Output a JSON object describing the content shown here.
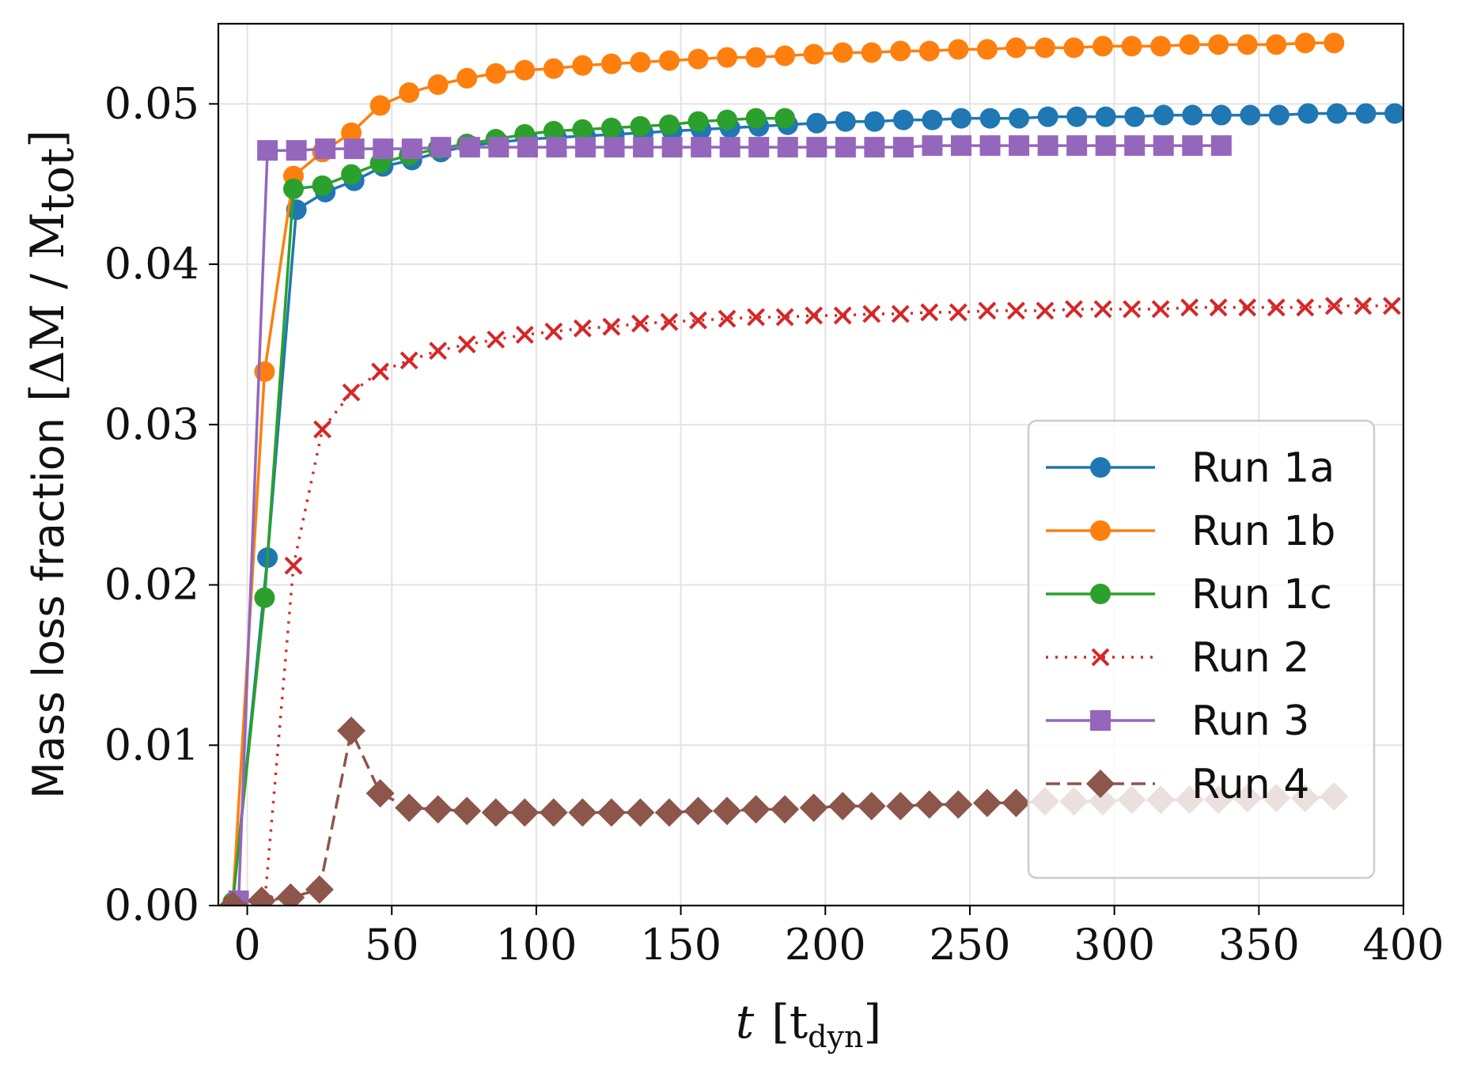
{
  "chart_data": {
    "type": "line",
    "title": "",
    "xlabel": {
      "var": "t",
      "unit_prefix": "[t",
      "unit_sub": "dyn",
      "unit_suffix": "]"
    },
    "ylabel": {
      "text": "Mass loss fraction",
      "math_prefix": "[ΔM / M",
      "math_sub": "tot",
      "math_suffix": "]"
    },
    "xlim": [
      -10,
      400
    ],
    "ylim": [
      0,
      0.055
    ],
    "xticks": [
      0,
      50,
      100,
      150,
      200,
      250,
      300,
      350,
      400
    ],
    "xtick_labels": [
      "0",
      "50",
      "100",
      "150",
      "200",
      "250",
      "300",
      "350",
      "400"
    ],
    "yticks": [
      0,
      0.01,
      0.02,
      0.03,
      0.04,
      0.05
    ],
    "ytick_labels": [
      "0.00",
      "0.01",
      "0.02",
      "0.03",
      "0.04",
      "0.05"
    ],
    "grid": true,
    "legend_position": "lower-right",
    "series": [
      {
        "name": "Run 1a",
        "color": "#1f77b4",
        "marker": "circle",
        "linestyle": "solid",
        "x": [
          -5,
          7,
          17,
          27,
          37,
          47,
          57,
          67,
          77,
          87,
          97,
          107,
          117,
          127,
          137,
          147,
          157,
          167,
          177,
          187,
          197,
          207,
          217,
          227,
          237,
          247,
          257,
          267,
          277,
          287,
          297,
          307,
          317,
          327,
          337,
          347,
          357,
          367,
          377,
          387,
          397
        ],
        "y": [
          0.0002,
          0.0217,
          0.0434,
          0.0445,
          0.0452,
          0.0461,
          0.0465,
          0.047,
          0.0474,
          0.0476,
          0.0478,
          0.0479,
          0.048,
          0.0481,
          0.0482,
          0.0483,
          0.0484,
          0.0485,
          0.0486,
          0.0487,
          0.0488,
          0.0489,
          0.0489,
          0.049,
          0.049,
          0.0491,
          0.0491,
          0.0491,
          0.0492,
          0.0492,
          0.0492,
          0.0492,
          0.0493,
          0.0493,
          0.0493,
          0.0493,
          0.0493,
          0.0494,
          0.0494,
          0.0494,
          0.0494
        ]
      },
      {
        "name": "Run 1b",
        "color": "#ff7f0e",
        "marker": "circle",
        "linestyle": "solid",
        "x": [
          -5,
          6,
          16,
          26,
          36,
          46,
          56,
          66,
          76,
          86,
          96,
          106,
          116,
          126,
          136,
          146,
          156,
          166,
          176,
          186,
          196,
          206,
          216,
          226,
          236,
          246,
          256,
          266,
          276,
          286,
          296,
          306,
          316,
          326,
          336,
          346,
          356,
          366,
          376
        ],
        "y": [
          0.0002,
          0.0333,
          0.0455,
          0.047,
          0.0482,
          0.0499,
          0.0507,
          0.0512,
          0.0516,
          0.0519,
          0.0521,
          0.0522,
          0.0524,
          0.0525,
          0.0526,
          0.0527,
          0.0528,
          0.0529,
          0.0529,
          0.053,
          0.0531,
          0.0532,
          0.0532,
          0.0533,
          0.0533,
          0.0534,
          0.0534,
          0.0535,
          0.0535,
          0.0535,
          0.0536,
          0.0536,
          0.0536,
          0.0537,
          0.0537,
          0.0537,
          0.0537,
          0.0538,
          0.0538
        ]
      },
      {
        "name": "Run 1c",
        "color": "#2ca02c",
        "marker": "circle",
        "linestyle": "solid",
        "x": [
          -5,
          6,
          16,
          26,
          36,
          46,
          56,
          66,
          76,
          86,
          96,
          106,
          116,
          126,
          136,
          146,
          156,
          166,
          176,
          186
        ],
        "y": [
          0.0002,
          0.0192,
          0.0447,
          0.0449,
          0.0456,
          0.0463,
          0.0468,
          0.0472,
          0.0475,
          0.0478,
          0.0481,
          0.0483,
          0.0484,
          0.0485,
          0.0486,
          0.0487,
          0.0489,
          0.049,
          0.0491,
          0.0491
        ]
      },
      {
        "name": "Run 2",
        "color": "#d62728",
        "marker": "x",
        "linestyle": "dotted",
        "x": [
          -5,
          6,
          16,
          26,
          36,
          46,
          56,
          66,
          76,
          86,
          96,
          106,
          116,
          126,
          136,
          146,
          156,
          166,
          176,
          186,
          196,
          206,
          216,
          226,
          236,
          246,
          256,
          266,
          276,
          286,
          296,
          306,
          316,
          326,
          336,
          346,
          356,
          366,
          376,
          386,
          396
        ],
        "y": [
          0.0,
          0.0001,
          0.0212,
          0.0297,
          0.032,
          0.0333,
          0.034,
          0.0346,
          0.035,
          0.0353,
          0.0356,
          0.0358,
          0.036,
          0.0361,
          0.0363,
          0.0364,
          0.0365,
          0.0366,
          0.0367,
          0.0367,
          0.0368,
          0.0368,
          0.0369,
          0.0369,
          0.037,
          0.037,
          0.0371,
          0.0371,
          0.0371,
          0.0372,
          0.0372,
          0.0372,
          0.0372,
          0.0373,
          0.0373,
          0.0373,
          0.0373,
          0.0373,
          0.0374,
          0.0374,
          0.0374
        ]
      },
      {
        "name": "Run 3",
        "color": "#9467bd",
        "marker": "square",
        "linestyle": "solid",
        "x": [
          -3,
          7,
          17,
          27,
          37,
          47,
          57,
          67,
          77,
          87,
          97,
          107,
          117,
          127,
          137,
          147,
          157,
          167,
          177,
          187,
          197,
          207,
          217,
          227,
          237,
          247,
          257,
          267,
          277,
          287,
          297,
          307,
          317,
          327,
          337
        ],
        "y": [
          0.0003,
          0.0471,
          0.0471,
          0.0472,
          0.0472,
          0.0472,
          0.0472,
          0.0473,
          0.0473,
          0.0473,
          0.0473,
          0.0473,
          0.0473,
          0.0473,
          0.0473,
          0.0473,
          0.0473,
          0.0473,
          0.0473,
          0.0473,
          0.0473,
          0.0473,
          0.0473,
          0.0473,
          0.0474,
          0.0474,
          0.0474,
          0.0474,
          0.0474,
          0.0474,
          0.0474,
          0.0474,
          0.0474,
          0.0474,
          0.0474
        ]
      },
      {
        "name": "Run 4",
        "color": "#8c564b",
        "marker": "diamond",
        "linestyle": "dashed",
        "x": [
          -5,
          5,
          15,
          25,
          36,
          46,
          56,
          66,
          76,
          86,
          96,
          106,
          116,
          126,
          136,
          146,
          156,
          166,
          176,
          186,
          196,
          206,
          216,
          226,
          236,
          246,
          256,
          266,
          276,
          286,
          296,
          306,
          316,
          326,
          336,
          346,
          356,
          366,
          376
        ],
        "y": [
          0.0,
          0.0003,
          0.0005,
          0.001,
          0.0109,
          0.007,
          0.0061,
          0.006,
          0.0059,
          0.0058,
          0.0058,
          0.0058,
          0.0058,
          0.0058,
          0.0058,
          0.0058,
          0.0059,
          0.0059,
          0.006,
          0.006,
          0.0061,
          0.0062,
          0.0062,
          0.0062,
          0.0063,
          0.0063,
          0.0064,
          0.0064,
          0.0065,
          0.0065,
          0.0065,
          0.0066,
          0.0066,
          0.0066,
          0.0066,
          0.0067,
          0.0067,
          0.0067,
          0.0068
        ]
      }
    ]
  }
}
